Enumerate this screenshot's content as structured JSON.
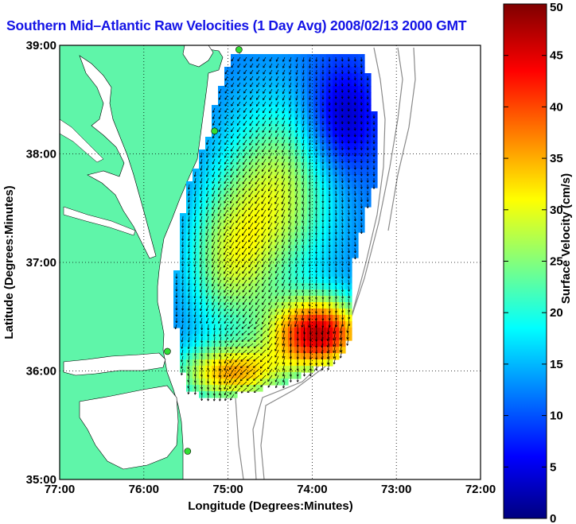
{
  "title": "Southern Mid–Atlantic Raw Velocities (1 Day Avg) 2008/02/13 2000 GMT",
  "map": {
    "x_label": "Longitude (Degrees:Minutes)",
    "y_label": "Latitude (Degrees:Minutes)",
    "lon_range": [
      -77,
      -72
    ],
    "lat_range": [
      35,
      39
    ],
    "x_ticks": [
      "77:00",
      "76:00",
      "75:00",
      "74:00",
      "73:00",
      "72:00"
    ],
    "y_ticks": [
      "39:00",
      "38:00",
      "37:00",
      "36:00",
      "35:00"
    ],
    "grid": "dotted",
    "land_color": "#5ff5a9",
    "water_color": "#ffffff",
    "stations": [
      {
        "lon": -74.87,
        "lat": 38.96
      },
      {
        "lon": -75.16,
        "lat": 38.21
      },
      {
        "lon": -75.72,
        "lat": 36.18
      },
      {
        "lon": -75.48,
        "lat": 35.26
      }
    ]
  },
  "colorbar": {
    "label": "Surface Velocity (cm/s)",
    "min": 0,
    "max": 50,
    "ticks": [
      "0",
      "5",
      "10",
      "15",
      "20",
      "25",
      "30",
      "35",
      "40",
      "45",
      "50"
    ],
    "colormap": "jet"
  }
}
